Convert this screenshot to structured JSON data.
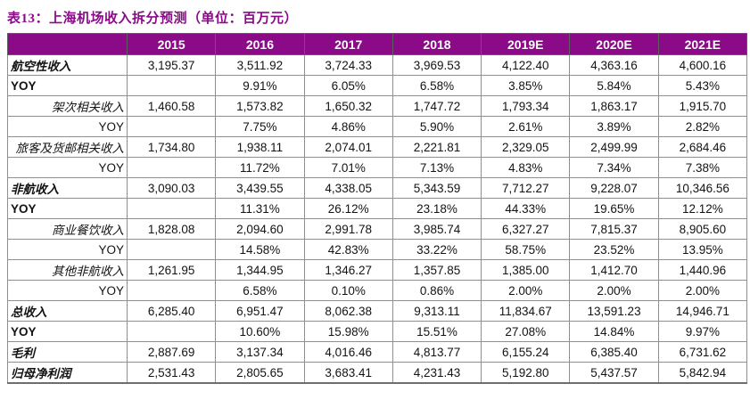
{
  "title": "表13：上海机场收入拆分预测（单位：百万元）",
  "colors": {
    "accent_purple": "#8A0A88",
    "header_text": "#FFFFFF",
    "grid_line": "#8F8F8F",
    "body_text": "#131313",
    "background": "#FFFFFF"
  },
  "chart_data": {
    "type": "table",
    "title": "表13：上海机场收入拆分预测（单位：百万元）",
    "unit": "百万元",
    "columns": [
      "",
      "2015",
      "2016",
      "2017",
      "2018",
      "2019E",
      "2020E",
      "2021E"
    ],
    "rows": [
      {
        "label": "航空性收入",
        "style": "section",
        "values": [
          "3,195.37",
          "3,511.92",
          "3,724.33",
          "3,969.53",
          "4,122.40",
          "4,363.16",
          "4,600.16"
        ]
      },
      {
        "label": "YOY",
        "style": "yoy-main",
        "values": [
          "",
          "9.91%",
          "6.05%",
          "6.58%",
          "3.85%",
          "5.84%",
          "5.43%"
        ]
      },
      {
        "label": "架次相关收入",
        "style": "sub",
        "values": [
          "1,460.58",
          "1,573.82",
          "1,650.32",
          "1,747.72",
          "1,793.34",
          "1,863.17",
          "1,915.70"
        ]
      },
      {
        "label": "YOY",
        "style": "yoy-sub",
        "values": [
          "",
          "7.75%",
          "4.86%",
          "5.90%",
          "2.61%",
          "3.89%",
          "2.82%"
        ]
      },
      {
        "label": "旅客及货邮相关收入",
        "style": "sub",
        "values": [
          "1,734.80",
          "1,938.11",
          "2,074.01",
          "2,221.81",
          "2,329.05",
          "2,499.99",
          "2,684.46"
        ]
      },
      {
        "label": "YOY",
        "style": "yoy-sub",
        "values": [
          "",
          "11.72%",
          "7.01%",
          "7.13%",
          "4.83%",
          "7.34%",
          "7.38%"
        ]
      },
      {
        "label": "非航收入",
        "style": "section",
        "values": [
          "3,090.03",
          "3,439.55",
          "4,338.05",
          "5,343.59",
          "7,712.27",
          "9,228.07",
          "10,346.56"
        ]
      },
      {
        "label": "YOY",
        "style": "yoy-main",
        "values": [
          "",
          "11.31%",
          "26.12%",
          "23.18%",
          "44.33%",
          "19.65%",
          "12.12%"
        ]
      },
      {
        "label": "商业餐饮收入",
        "style": "sub",
        "values": [
          "1,828.08",
          "2,094.60",
          "2,991.78",
          "3,985.74",
          "6,327.27",
          "7,815.37",
          "8,905.60"
        ]
      },
      {
        "label": "YOY",
        "style": "yoy-sub",
        "values": [
          "",
          "14.58%",
          "42.83%",
          "33.22%",
          "58.75%",
          "23.52%",
          "13.95%"
        ]
      },
      {
        "label": "其他非航收入",
        "style": "sub",
        "values": [
          "1,261.95",
          "1,344.95",
          "1,346.27",
          "1,357.85",
          "1,385.00",
          "1,412.70",
          "1,440.96"
        ]
      },
      {
        "label": "YOY",
        "style": "yoy-sub",
        "values": [
          "",
          "6.58%",
          "0.10%",
          "0.86%",
          "2.00%",
          "2.00%",
          "2.00%"
        ]
      },
      {
        "label": "总收入",
        "style": "total",
        "values": [
          "6,285.40",
          "6,951.47",
          "8,062.38",
          "9,313.11",
          "11,834.67",
          "13,591.23",
          "14,946.71"
        ]
      },
      {
        "label": "YOY",
        "style": "yoy-main",
        "values": [
          "",
          "10.60%",
          "15.98%",
          "15.51%",
          "27.08%",
          "14.84%",
          "9.97%"
        ]
      },
      {
        "label": "毛利",
        "style": "total",
        "values": [
          "2,887.69",
          "3,137.34",
          "4,016.46",
          "4,813.77",
          "6,155.24",
          "6,385.40",
          "6,731.62"
        ]
      },
      {
        "label": "归母净利润",
        "style": "total",
        "values": [
          "2,531.43",
          "2,805.65",
          "3,683.41",
          "4,231.43",
          "5,192.80",
          "5,437.57",
          "5,842.94"
        ]
      }
    ]
  }
}
